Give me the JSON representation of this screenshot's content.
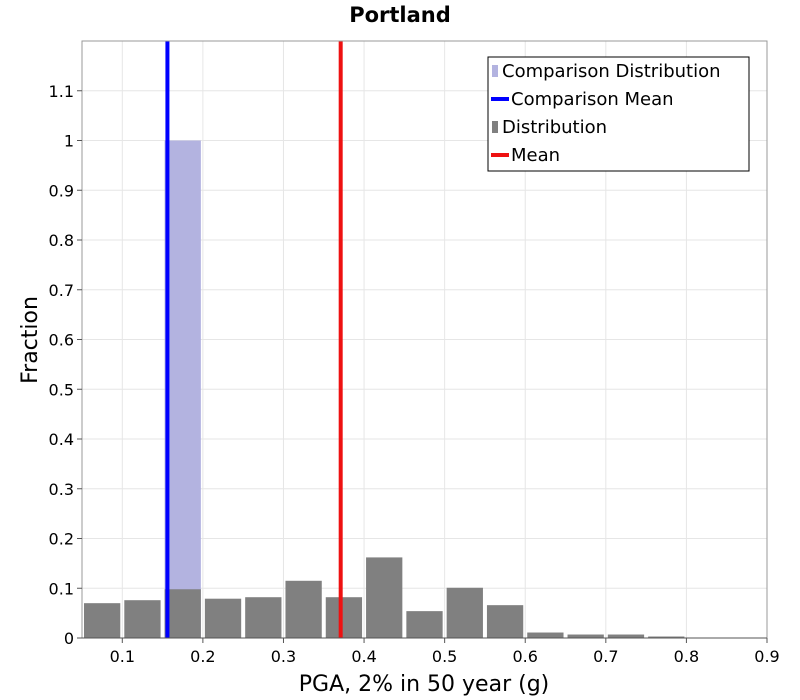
{
  "chart_data": {
    "type": "bar",
    "title": "Portland",
    "xlabel": "PGA, 2% in 50 year (g)",
    "ylabel": "Fraction",
    "xlim": [
      0.05,
      0.9
    ],
    "ylim": [
      0,
      1.2
    ],
    "x_ticks": [
      0.1,
      0.2,
      0.3,
      0.4,
      0.5,
      0.6,
      0.7,
      0.8,
      0.9
    ],
    "x_tick_labels": [
      "0.1",
      "0.2",
      "0.3",
      "0.4",
      "0.5",
      "0.6",
      "0.7",
      "0.8",
      "0.9"
    ],
    "y_ticks": [
      0,
      0.1,
      0.2,
      0.3,
      0.4,
      0.5,
      0.6,
      0.7,
      0.8,
      0.9,
      1,
      1.1
    ],
    "y_tick_labels": [
      "0",
      "0.1",
      "0.2",
      "0.3",
      "0.4",
      "0.5",
      "0.6",
      "0.7",
      "0.8",
      "0.9",
      "1",
      "1.1"
    ],
    "grid": true,
    "legend_position": "top-right",
    "bin_width": 0.05,
    "series": [
      {
        "name": "Comparison Distribution",
        "kind": "bars",
        "color": "#b3b3e0",
        "x": [
          0.175
        ],
        "values": [
          1.0
        ]
      },
      {
        "name": "Comparison Mean",
        "kind": "vline",
        "color": "#0000ff",
        "x": 0.156
      },
      {
        "name": "Distribution",
        "kind": "bars",
        "color": "#808080",
        "x": [
          0.075,
          0.125,
          0.175,
          0.225,
          0.275,
          0.325,
          0.375,
          0.425,
          0.475,
          0.525,
          0.575,
          0.625,
          0.675,
          0.725,
          0.775,
          0.825,
          0.875
        ],
        "values": [
          0.07,
          0.076,
          0.098,
          0.079,
          0.082,
          0.115,
          0.082,
          0.162,
          0.054,
          0.101,
          0.066,
          0.011,
          0.007,
          0.007,
          0.003,
          0.001,
          0.001
        ]
      },
      {
        "name": "Mean",
        "kind": "vline",
        "color": "#ee1111",
        "x": 0.371
      }
    ]
  }
}
